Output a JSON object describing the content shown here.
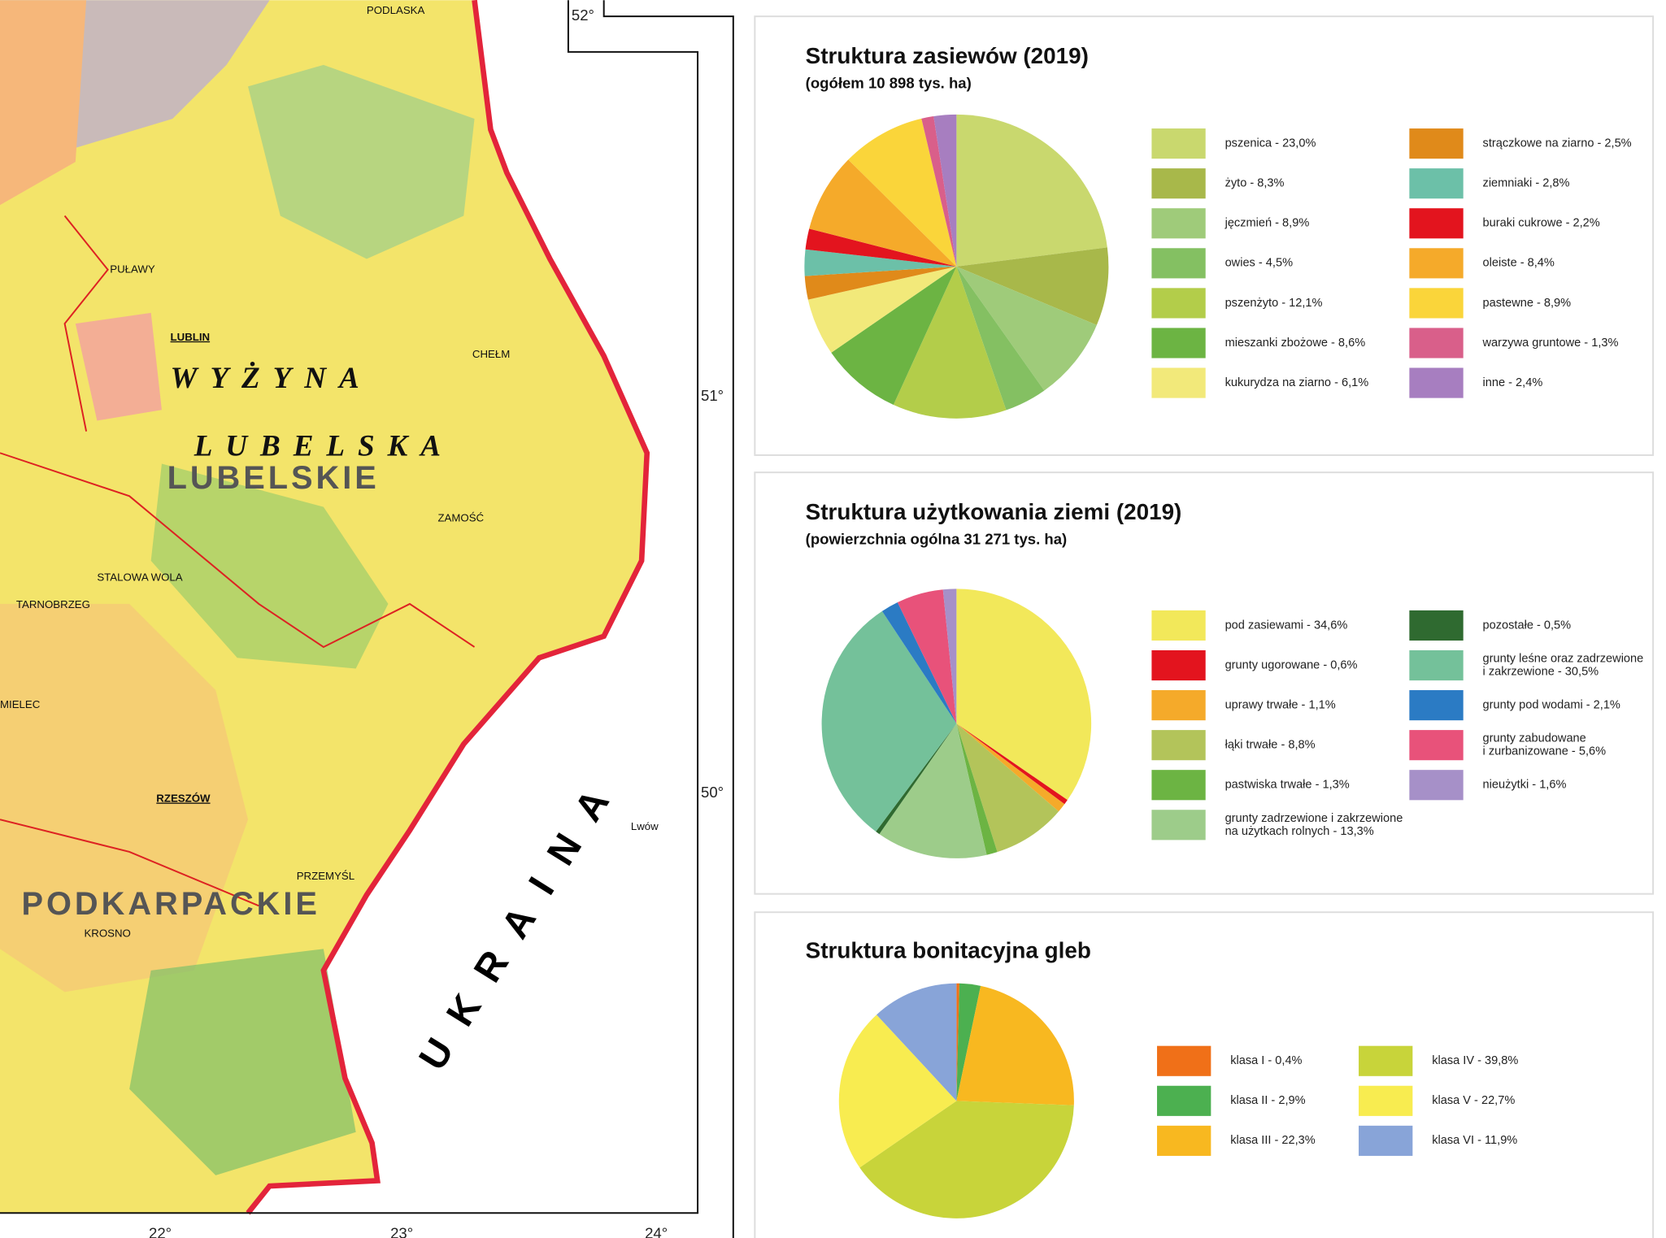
{
  "map": {
    "cities": [
      "PODLASKA",
      "PUŁAWY",
      "LUBLIN",
      "CHEŁM",
      "ZAMOŚĆ",
      "STALOWA WOLA",
      "TARNOBRZEG",
      "MIELEC",
      "RZESZÓW",
      "PRZEMYŚL",
      "KROSNO",
      "Lwów"
    ],
    "regions": [
      "WYŻYNA",
      "LUBELSKA",
      "LUBELSKIE",
      "PODKARPACKIE",
      "UKRAINA"
    ],
    "coords": [
      "52°",
      "51°",
      "50°",
      "22°",
      "23°",
      "24°"
    ]
  },
  "chart_data": [
    {
      "type": "pie",
      "title": "Struktura zasiewów (2019)",
      "subtitle": "(ogółem 10 898 tys. ha)",
      "categories": [
        "pszenica - 23,0%",
        "żyto - 8,3%",
        "jęczmień - 8,9%",
        "owies - 4,5%",
        "pszenżyto - 12,1%",
        "mieszanki zbożowe - 8,6%",
        "kukurydza na ziarno - 6,1%",
        "strączkowe na ziarno - 2,5%",
        "ziemniaki - 2,8%",
        "buraki cukrowe - 2,2%",
        "oleiste - 8,4%",
        "pastewne - 8,9%",
        "warzywa gruntowe - 1,3%",
        "inne - 2,4%"
      ],
      "values": [
        23.0,
        8.3,
        8.9,
        4.5,
        12.1,
        8.6,
        6.1,
        2.5,
        2.8,
        2.2,
        8.4,
        8.9,
        1.3,
        2.4
      ],
      "colors": [
        "#c9d86e",
        "#a8b84a",
        "#9fcb7a",
        "#84c062",
        "#b3cd4a",
        "#6cb443",
        "#f2e97a",
        "#e08a1a",
        "#6cc0a8",
        "#e3141e",
        "#f5aa2a",
        "#fad53a",
        "#d95f8a",
        "#a77ec0"
      ]
    },
    {
      "type": "pie",
      "title": "Struktura użytkowania ziemi (2019)",
      "subtitle": "(powierzchnia ogólna 31 271 tys. ha)",
      "categories": [
        "pod zasiewami - 34,6%",
        "grunty ugorowane - 0,6%",
        "uprawy trwałe - 1,1%",
        "łąki trwałe - 8,8%",
        "pastwiska trwałe - 1,3%",
        "grunty zadrzewione i zakrzewione\nna użytkach rolnych - 13,3%",
        "pozostałe - 0,5%",
        "grunty leśne oraz zadrzewione\ni zakrzewione - 30,5%",
        "grunty pod wodami - 2,1%",
        "grunty zabudowane\ni zurbanizowane - 5,6%",
        "nieużytki - 1,6%"
      ],
      "values": [
        34.6,
        0.6,
        1.1,
        8.8,
        1.3,
        13.3,
        0.5,
        30.5,
        2.1,
        5.6,
        1.6
      ],
      "colors": [
        "#f2e85a",
        "#e3141e",
        "#f5aa2a",
        "#b3c45a",
        "#6cb443",
        "#9dcc8a",
        "#2f6a30",
        "#74c19a",
        "#2b7bc4",
        "#e8527a",
        "#a690c8"
      ]
    },
    {
      "type": "pie",
      "title": "Struktura bonitacyjna gleb",
      "categories": [
        "klasa I - 0,4%",
        "klasa II - 2,9%",
        "klasa III - 22,3%",
        "klasa IV - 39,8%",
        "klasa V - 22,7%",
        "klasa VI - 11,9%"
      ],
      "values": [
        0.4,
        2.9,
        22.3,
        39.8,
        22.7,
        11.9
      ],
      "colors": [
        "#f07018",
        "#4cb050",
        "#f8b820",
        "#c8d43a",
        "#f8ec50",
        "#88a4d8"
      ]
    }
  ]
}
